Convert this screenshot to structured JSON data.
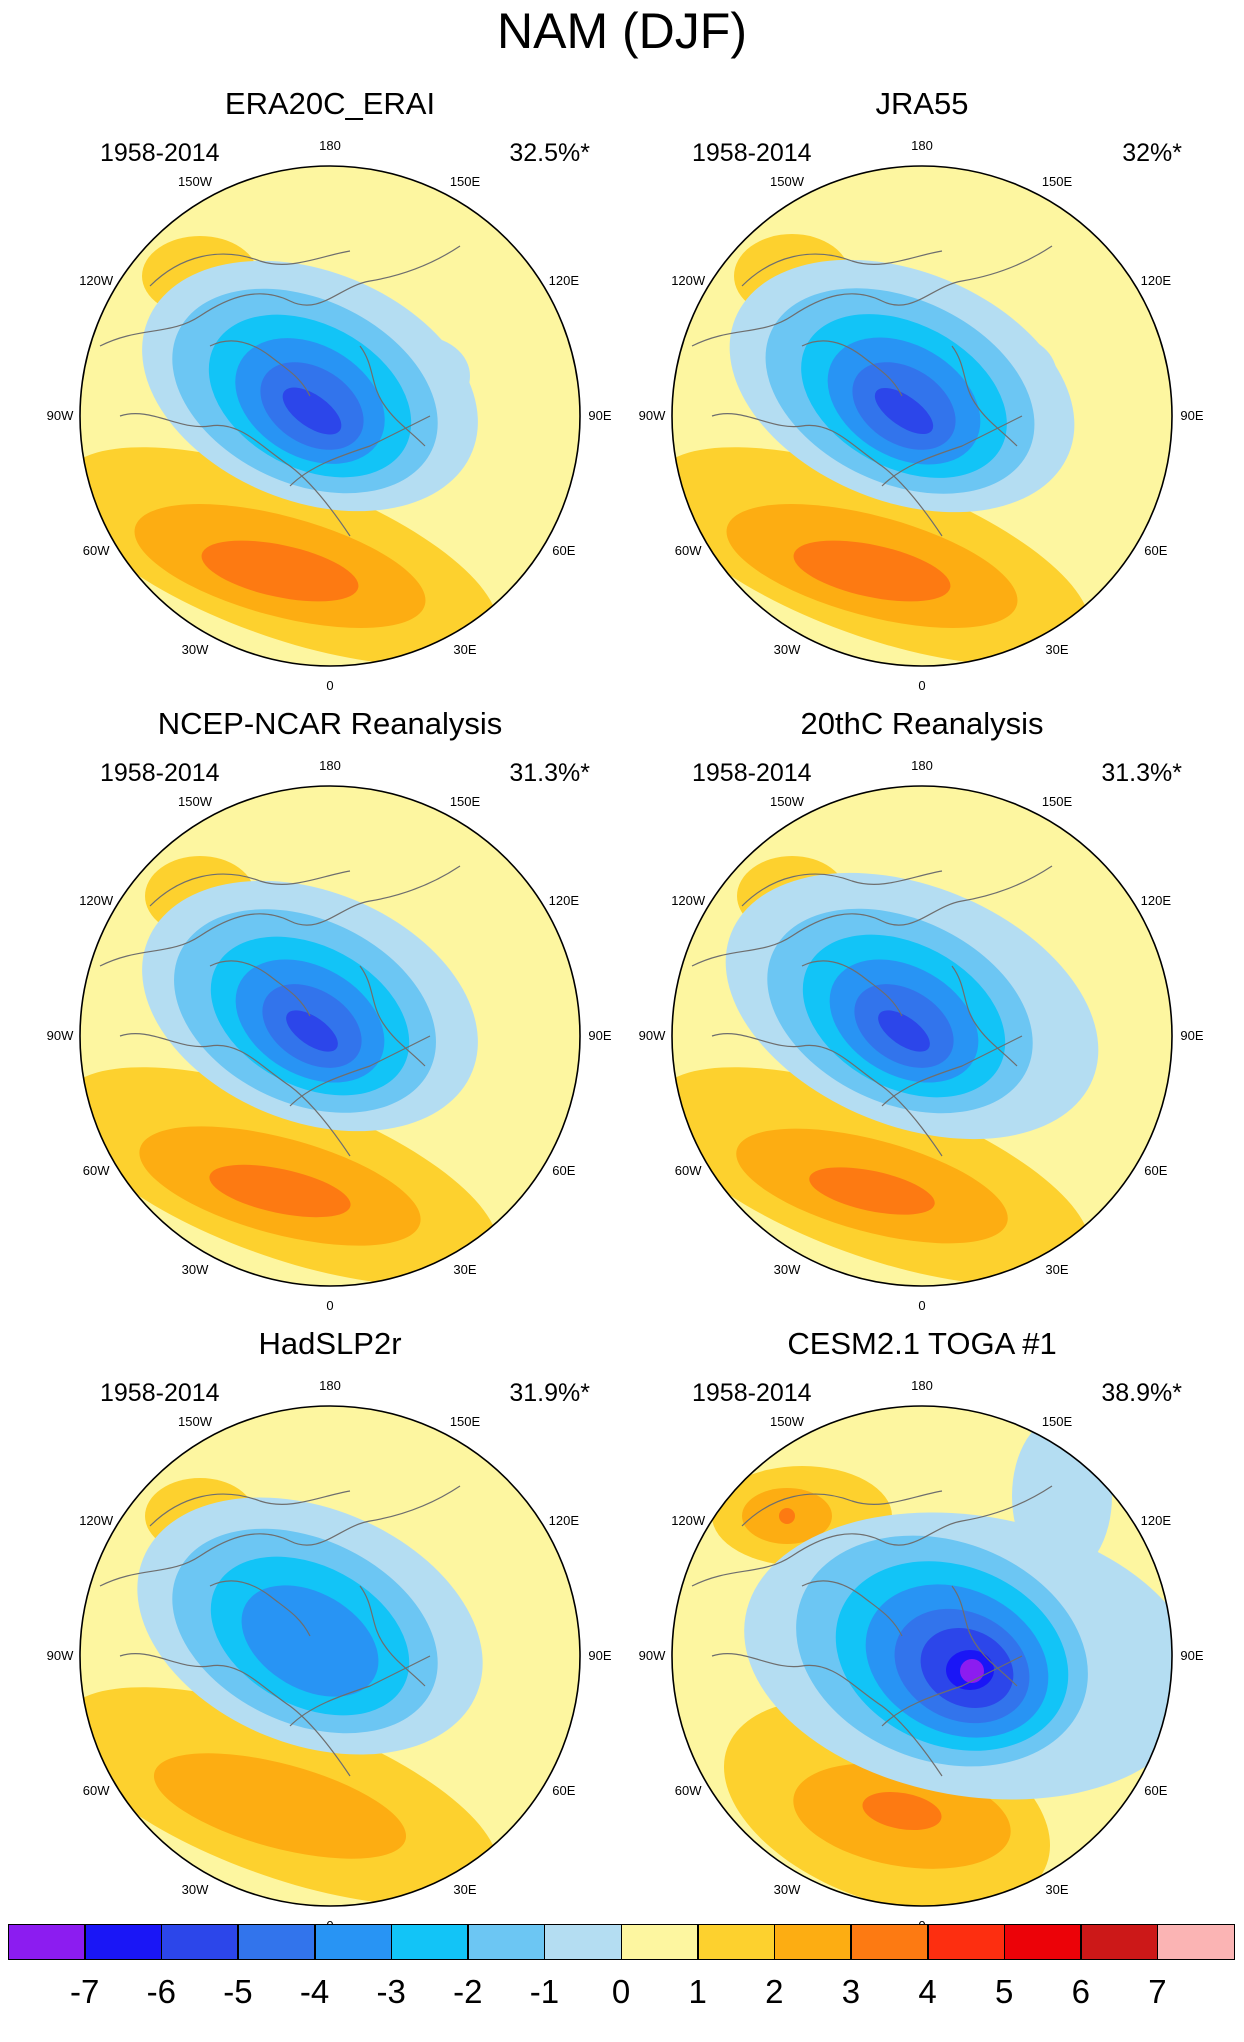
{
  "figure": {
    "title": "NAM (DJF)",
    "longitude_labels": [
      "180",
      "150E",
      "120E",
      "90E",
      "60E",
      "30E",
      "0",
      "30W",
      "60W",
      "90W",
      "120W",
      "150W"
    ]
  },
  "panels": [
    {
      "title": "ERA20C_ERAI",
      "period": "1958-2014",
      "variance": "32.5%*",
      "pattern": "era20c"
    },
    {
      "title": "JRA55",
      "period": "1958-2014",
      "variance": "32%*",
      "pattern": "jra55"
    },
    {
      "title": "NCEP-NCAR Reanalysis",
      "period": "1958-2014",
      "variance": "31.3%*",
      "pattern": "ncep"
    },
    {
      "title": "20thC Reanalysis",
      "period": "1958-2014",
      "variance": "31.3%*",
      "pattern": "twentieth"
    },
    {
      "title": "HadSLP2r",
      "period": "1958-2014",
      "variance": "31.9%*",
      "pattern": "hadslp"
    },
    {
      "title": "CESM2.1 TOGA #1",
      "period": "1958-2014",
      "variance": "38.9%*",
      "pattern": "cesm"
    }
  ],
  "colorbar": {
    "labels": [
      "-7",
      "-6",
      "-5",
      "-4",
      "-3",
      "-2",
      "-1",
      "0",
      "1",
      "2",
      "3",
      "4",
      "5",
      "6",
      "7"
    ],
    "colors": [
      "#8c1cf0",
      "#1a16f6",
      "#2c46ea",
      "#3274ec",
      "#2894f4",
      "#12c4f7",
      "#6cc6f3",
      "#b4ddf2",
      "#fdf6a0",
      "#fdd12e",
      "#fdad12",
      "#fd7a12",
      "#fd2e10",
      "#ec0208",
      "#cc1818",
      "#fbb4b4"
    ]
  }
}
